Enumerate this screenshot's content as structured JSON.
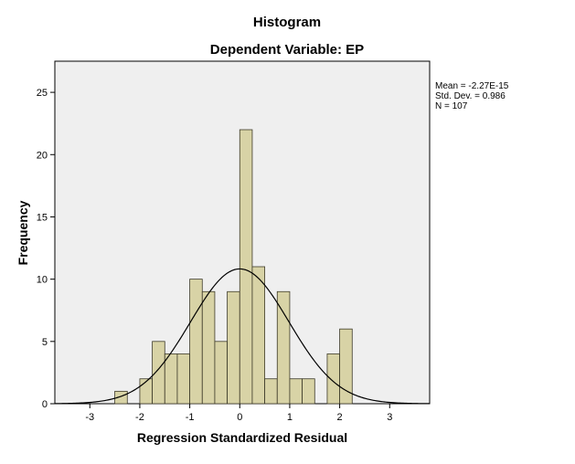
{
  "chart_data": {
    "type": "bar",
    "title": "Histogram",
    "subtitle": "Dependent Variable: EP",
    "xlabel": "Regression Standardized Residual",
    "ylabel": "Frequency",
    "xlim": [
      -3.7,
      3.8
    ],
    "ylim": [
      0,
      27.5
    ],
    "xticks": [
      -3,
      -2,
      -1,
      0,
      1,
      2,
      3
    ],
    "yticks": [
      0,
      5,
      10,
      15,
      20,
      25
    ],
    "xtick_labels": [
      "-3",
      "-2",
      "-1",
      "0",
      "1",
      "2",
      "3"
    ],
    "ytick_labels": [
      "0",
      "5",
      "10",
      "15",
      "20",
      "25"
    ],
    "bin_width": 0.25,
    "bins": [
      {
        "start": -2.5,
        "count": 1
      },
      {
        "start": -2.0,
        "count": 2
      },
      {
        "start": -1.75,
        "count": 5
      },
      {
        "start": -1.5,
        "count": 4
      },
      {
        "start": -1.25,
        "count": 4
      },
      {
        "start": -1.0,
        "count": 10
      },
      {
        "start": -0.75,
        "count": 9
      },
      {
        "start": -0.5,
        "count": 5
      },
      {
        "start": -0.25,
        "count": 9
      },
      {
        "start": 0.0,
        "count": 22
      },
      {
        "start": 0.25,
        "count": 11
      },
      {
        "start": 0.5,
        "count": 2
      },
      {
        "start": 0.75,
        "count": 9
      },
      {
        "start": 1.0,
        "count": 2
      },
      {
        "start": 1.25,
        "count": 2
      },
      {
        "start": 1.75,
        "count": 4
      },
      {
        "start": 2.0,
        "count": 6
      }
    ],
    "normal_curve": {
      "mean": 0,
      "sd": 0.986,
      "n": 107,
      "scale_bin_width": 0.25
    },
    "stats": {
      "mean": "Mean = -2.27E-15",
      "sd": "Std. Dev. = 0.986",
      "n": "N = 107"
    },
    "legend_position": "right",
    "grid": false,
    "colors": {
      "bar_fill": "#d8d3a6",
      "bar_stroke": "#3d3a28",
      "plot_background": "#efefef",
      "axis": "#000000",
      "curve": "#000000"
    }
  }
}
